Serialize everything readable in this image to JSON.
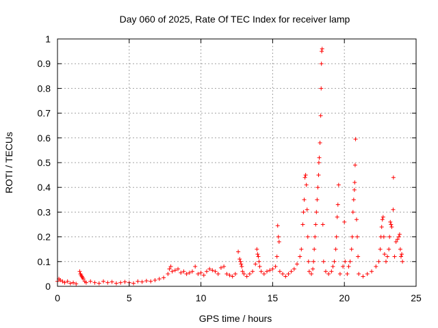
{
  "chart_data": {
    "type": "scatter",
    "title": "Day 060 of 2025, Rate Of TEC Index for receiver lamp",
    "xlabel": "GPS time / hours",
    "ylabel": "ROTI / TECUs",
    "xlim": [
      0,
      25
    ],
    "ylim": [
      0,
      1
    ],
    "xticks": [
      0,
      5,
      10,
      15,
      20,
      25
    ],
    "xtick_labels": [
      "0",
      "5",
      "10",
      "15",
      "20",
      "25"
    ],
    "yticks": [
      0,
      0.1,
      0.2,
      0.3,
      0.4,
      0.5,
      0.6,
      0.7,
      0.8,
      0.9,
      1
    ],
    "ytick_labels": [
      "0",
      "0.1",
      "0.2",
      "0.3",
      "0.4",
      "0.5",
      "0.6",
      "0.7",
      "0.8",
      "0.9",
      "1"
    ],
    "grid": true,
    "marker": "+",
    "color": "#ff0000",
    "series": [
      {
        "points": [
          [
            0.0,
            0.02
          ],
          [
            0.1,
            0.03
          ],
          [
            0.2,
            0.025
          ],
          [
            0.35,
            0.02
          ],
          [
            0.5,
            0.015
          ],
          [
            0.7,
            0.02
          ],
          [
            0.9,
            0.012
          ],
          [
            1.1,
            0.015
          ],
          [
            1.3,
            0.01
          ],
          [
            1.55,
            0.06
          ],
          [
            1.6,
            0.05
          ],
          [
            1.65,
            0.045
          ],
          [
            1.7,
            0.04
          ],
          [
            1.75,
            0.035
          ],
          [
            1.8,
            0.03
          ],
          [
            1.9,
            0.02
          ],
          [
            2.0,
            0.015
          ],
          [
            2.3,
            0.02
          ],
          [
            2.6,
            0.015
          ],
          [
            2.9,
            0.012
          ],
          [
            3.2,
            0.02
          ],
          [
            3.5,
            0.015
          ],
          [
            3.8,
            0.018
          ],
          [
            4.1,
            0.012
          ],
          [
            4.4,
            0.015
          ],
          [
            4.7,
            0.018
          ],
          [
            5.0,
            0.015
          ],
          [
            5.3,
            0.012
          ],
          [
            5.6,
            0.02
          ],
          [
            5.9,
            0.018
          ],
          [
            6.2,
            0.022
          ],
          [
            6.5,
            0.02
          ],
          [
            6.8,
            0.025
          ],
          [
            7.1,
            0.03
          ],
          [
            7.4,
            0.035
          ],
          [
            7.7,
            0.05
          ],
          [
            7.8,
            0.07
          ],
          [
            7.9,
            0.08
          ],
          [
            8.0,
            0.06
          ],
          [
            8.2,
            0.065
          ],
          [
            8.4,
            0.07
          ],
          [
            8.6,
            0.055
          ],
          [
            8.8,
            0.06
          ],
          [
            9.0,
            0.05
          ],
          [
            9.2,
            0.055
          ],
          [
            9.4,
            0.06
          ],
          [
            9.6,
            0.08
          ],
          [
            9.8,
            0.05
          ],
          [
            10.0,
            0.055
          ],
          [
            10.2,
            0.045
          ],
          [
            10.4,
            0.06
          ],
          [
            10.6,
            0.07
          ],
          [
            10.8,
            0.065
          ],
          [
            11.0,
            0.06
          ],
          [
            11.2,
            0.05
          ],
          [
            11.4,
            0.075
          ],
          [
            11.6,
            0.08
          ],
          [
            11.8,
            0.05
          ],
          [
            12.0,
            0.045
          ],
          [
            12.2,
            0.04
          ],
          [
            12.4,
            0.05
          ],
          [
            12.6,
            0.14
          ],
          [
            12.7,
            0.11
          ],
          [
            12.75,
            0.1
          ],
          [
            12.8,
            0.09
          ],
          [
            12.85,
            0.08
          ],
          [
            12.9,
            0.06
          ],
          [
            13.0,
            0.05
          ],
          [
            13.2,
            0.04
          ],
          [
            13.4,
            0.05
          ],
          [
            13.6,
            0.06
          ],
          [
            13.8,
            0.09
          ],
          [
            13.9,
            0.15
          ],
          [
            13.95,
            0.13
          ],
          [
            14.0,
            0.12
          ],
          [
            14.05,
            0.1
          ],
          [
            14.1,
            0.08
          ],
          [
            14.2,
            0.06
          ],
          [
            14.4,
            0.05
          ],
          [
            14.6,
            0.06
          ],
          [
            14.8,
            0.065
          ],
          [
            15.0,
            0.07
          ],
          [
            15.2,
            0.08
          ],
          [
            15.3,
            0.12
          ],
          [
            15.35,
            0.245
          ],
          [
            15.4,
            0.2
          ],
          [
            15.45,
            0.18
          ],
          [
            15.5,
            0.06
          ],
          [
            15.7,
            0.05
          ],
          [
            15.9,
            0.04
          ],
          [
            16.1,
            0.05
          ],
          [
            16.3,
            0.06
          ],
          [
            16.5,
            0.07
          ],
          [
            16.7,
            0.09
          ],
          [
            16.9,
            0.12
          ],
          [
            17.0,
            0.15
          ],
          [
            17.1,
            0.25
          ],
          [
            17.15,
            0.3
          ],
          [
            17.2,
            0.35
          ],
          [
            17.25,
            0.44
          ],
          [
            17.3,
            0.45
          ],
          [
            17.35,
            0.41
          ],
          [
            17.4,
            0.31
          ],
          [
            17.45,
            0.2
          ],
          [
            17.5,
            0.1
          ],
          [
            17.55,
            0.06
          ],
          [
            17.7,
            0.05
          ],
          [
            17.8,
            0.07
          ],
          [
            17.85,
            0.1
          ],
          [
            17.9,
            0.15
          ],
          [
            17.95,
            0.2
          ],
          [
            18.0,
            0.25
          ],
          [
            18.05,
            0.3
          ],
          [
            18.1,
            0.35
          ],
          [
            18.15,
            0.4
          ],
          [
            18.2,
            0.45
          ],
          [
            18.22,
            0.5
          ],
          [
            18.25,
            0.52
          ],
          [
            18.3,
            0.58
          ],
          [
            18.35,
            0.69
          ],
          [
            18.38,
            0.8
          ],
          [
            18.4,
            0.9
          ],
          [
            18.42,
            0.95
          ],
          [
            18.45,
            0.96
          ],
          [
            18.5,
            0.25
          ],
          [
            18.55,
            0.1
          ],
          [
            18.7,
            0.06
          ],
          [
            18.9,
            0.05
          ],
          [
            19.1,
            0.06
          ],
          [
            19.2,
            0.08
          ],
          [
            19.3,
            0.1
          ],
          [
            19.4,
            0.15
          ],
          [
            19.45,
            0.2
          ],
          [
            19.5,
            0.28
          ],
          [
            19.55,
            0.33
          ],
          [
            19.6,
            0.41
          ],
          [
            19.7,
            0.05
          ],
          [
            19.9,
            0.08
          ],
          [
            20.0,
            0.26
          ],
          [
            20.05,
            0.1
          ],
          [
            20.2,
            0.05
          ],
          [
            20.3,
            0.08
          ],
          [
            20.4,
            0.1
          ],
          [
            20.5,
            0.15
          ],
          [
            20.55,
            0.2
          ],
          [
            20.6,
            0.3
          ],
          [
            20.65,
            0.35
          ],
          [
            20.7,
            0.39
          ],
          [
            20.72,
            0.42
          ],
          [
            20.75,
            0.49
          ],
          [
            20.78,
            0.595
          ],
          [
            20.85,
            0.27
          ],
          [
            20.9,
            0.2
          ],
          [
            20.95,
            0.12
          ],
          [
            21.0,
            0.05
          ],
          [
            21.3,
            0.04
          ],
          [
            21.6,
            0.05
          ],
          [
            21.9,
            0.06
          ],
          [
            22.2,
            0.08
          ],
          [
            22.4,
            0.1
          ],
          [
            22.5,
            0.15
          ],
          [
            22.55,
            0.2
          ],
          [
            22.6,
            0.24
          ],
          [
            22.65,
            0.27
          ],
          [
            22.7,
            0.28
          ],
          [
            22.75,
            0.2
          ],
          [
            22.8,
            0.13
          ],
          [
            22.9,
            0.1
          ],
          [
            23.0,
            0.12
          ],
          [
            23.1,
            0.15
          ],
          [
            23.15,
            0.2
          ],
          [
            23.2,
            0.26
          ],
          [
            23.25,
            0.25
          ],
          [
            23.3,
            0.24
          ],
          [
            23.4,
            0.31
          ],
          [
            23.42,
            0.44
          ],
          [
            23.5,
            0.12
          ],
          [
            23.6,
            0.18
          ],
          [
            23.7,
            0.19
          ],
          [
            23.8,
            0.2
          ],
          [
            23.85,
            0.21
          ],
          [
            23.9,
            0.15
          ],
          [
            23.95,
            0.12
          ],
          [
            24.0,
            0.13
          ],
          [
            24.05,
            0.1
          ]
        ]
      }
    ]
  }
}
